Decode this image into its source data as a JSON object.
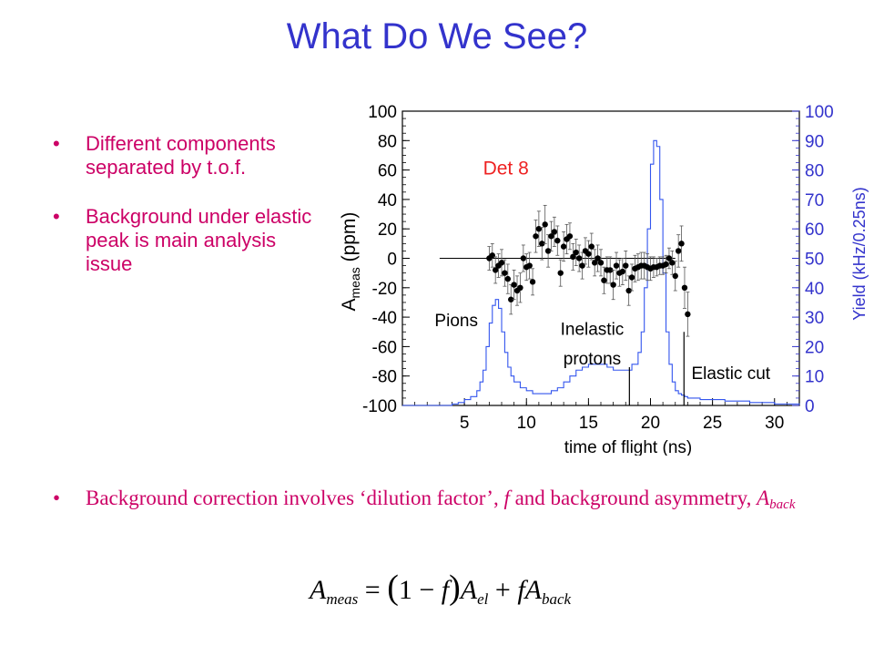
{
  "slide": {
    "title": "What Do We See?",
    "bullets": [
      "Different components separated by t.o.f.",
      "Background under elastic peak is main analysis issue"
    ],
    "bottom_bullet": {
      "text_before": "Background correction involves ‘dilution factor’, ",
      "f": "f",
      "text_middle": " and background asymmetry, ",
      "A": "A",
      "sub": "back"
    },
    "formula": {
      "lhs": "A",
      "lhs_sub": "meas",
      "eq": "=",
      "paren_open": "(",
      "one_minus": "1 − ",
      "f": "f",
      "paren_close": ")",
      "A_el": "A",
      "A_el_sub": "el",
      "plus": " + ",
      "f2": "f",
      "A_back": "A",
      "A_back_sub": "back"
    }
  },
  "chart_data": {
    "type": "scatter",
    "annotation_det": "Det 8",
    "labels": {
      "pions": "Pions",
      "inelastic_1": "Inelastic",
      "inelastic_2": "protons",
      "elastic_cut": "Elastic cut"
    },
    "xlabel": "time of flight (ns)",
    "ylabel_left_main": "A",
    "ylabel_left_sub": "meas",
    "ylabel_left_unit": " (ppm)",
    "ylabel_right": "Yield (kHz/0.25ns)",
    "xlim": [
      0,
      32
    ],
    "ylim_left": [
      -100,
      100
    ],
    "ylim_right": [
      0,
      100
    ],
    "xticks": [
      5,
      10,
      15,
      20,
      25,
      30
    ],
    "yticks_left": [
      100,
      80,
      60,
      40,
      20,
      0,
      -20,
      -40,
      -60,
      -80,
      -100
    ],
    "yticks_right": [
      100,
      90,
      80,
      70,
      60,
      50,
      40,
      30,
      20,
      10,
      0
    ],
    "colors": {
      "yield": "#3355ee",
      "right_axis": "#3333cc",
      "det_label": "#ee2222",
      "points": "#000000"
    },
    "series": [
      {
        "name": "Ameas",
        "axis": "left",
        "points": [
          [
            7.0,
            0,
            8
          ],
          [
            7.25,
            2,
            8
          ],
          [
            7.5,
            -8,
            9
          ],
          [
            7.75,
            -5,
            8
          ],
          [
            8.0,
            -3,
            9
          ],
          [
            8.25,
            -10,
            9
          ],
          [
            8.5,
            -14,
            10
          ],
          [
            8.75,
            -28,
            10
          ],
          [
            9.0,
            -18,
            10
          ],
          [
            9.25,
            -22,
            10
          ],
          [
            9.5,
            -20,
            10
          ],
          [
            9.75,
            0,
            9
          ],
          [
            10.0,
            -6,
            9
          ],
          [
            10.25,
            -5,
            9
          ],
          [
            10.5,
            -16,
            9
          ],
          [
            10.75,
            15,
            11
          ],
          [
            11.0,
            20,
            12
          ],
          [
            11.25,
            10,
            11
          ],
          [
            11.5,
            23,
            13
          ],
          [
            11.75,
            5,
            11
          ],
          [
            12.0,
            15,
            10
          ],
          [
            12.25,
            18,
            10
          ],
          [
            12.5,
            12,
            10
          ],
          [
            12.75,
            -10,
            9
          ],
          [
            13.0,
            8,
            10
          ],
          [
            13.25,
            13,
            10
          ],
          [
            13.5,
            15,
            9
          ],
          [
            13.75,
            1,
            9
          ],
          [
            14.0,
            4,
            9
          ],
          [
            14.25,
            0,
            9
          ],
          [
            14.5,
            -5,
            9
          ],
          [
            14.75,
            5,
            9
          ],
          [
            15.0,
            3,
            9
          ],
          [
            15.25,
            8,
            9
          ],
          [
            15.5,
            -3,
            9
          ],
          [
            15.75,
            0,
            9
          ],
          [
            16.0,
            -3,
            9
          ],
          [
            16.25,
            -15,
            9
          ],
          [
            16.5,
            -8,
            9
          ],
          [
            16.75,
            -8,
            9
          ],
          [
            17.0,
            -18,
            10
          ],
          [
            17.25,
            -5,
            9
          ],
          [
            17.5,
            -10,
            9
          ],
          [
            17.75,
            -9,
            9
          ],
          [
            18.0,
            -5,
            10
          ],
          [
            18.25,
            -22,
            10
          ],
          [
            18.5,
            -13,
            9
          ],
          [
            18.75,
            -7,
            9
          ],
          [
            19.0,
            -6,
            9
          ],
          [
            19.25,
            -5,
            9
          ],
          [
            19.5,
            -5,
            9
          ],
          [
            19.75,
            -6,
            9
          ],
          [
            20.0,
            -7,
            8
          ],
          [
            20.25,
            -6,
            7
          ],
          [
            20.5,
            -6,
            6
          ],
          [
            20.75,
            -5,
            6
          ],
          [
            21.0,
            -5,
            6
          ],
          [
            21.25,
            -4,
            6
          ],
          [
            21.5,
            0,
            7
          ],
          [
            21.75,
            -3,
            8
          ],
          [
            22.0,
            -12,
            10
          ],
          [
            22.25,
            5,
            11
          ],
          [
            22.5,
            10,
            12
          ],
          [
            22.75,
            -20,
            14
          ],
          [
            23.0,
            -38,
            15
          ]
        ]
      },
      {
        "name": "Yield",
        "axis": "right",
        "x": [
          0,
          3,
          4,
          4.5,
          5,
          5.5,
          6,
          6.25,
          6.5,
          6.75,
          7,
          7.25,
          7.5,
          7.75,
          8,
          8.25,
          8.5,
          8.75,
          9,
          9.5,
          10,
          10.5,
          11,
          11.5,
          12,
          12.5,
          13,
          13.5,
          14,
          14.5,
          15,
          15.5,
          16,
          16.5,
          17,
          17.5,
          18,
          18.5,
          19,
          19.25,
          19.5,
          19.75,
          20,
          20.25,
          20.5,
          20.75,
          21,
          21.25,
          21.5,
          21.75,
          22,
          22.25,
          22.5,
          22.75,
          23,
          24,
          26,
          28,
          30,
          32
        ],
        "y": [
          0,
          0,
          0.5,
          1,
          2,
          3,
          5,
          8,
          12,
          20,
          28,
          34,
          36,
          33,
          25,
          18,
          13,
          10,
          8,
          6,
          5,
          4,
          4,
          4,
          5,
          6,
          8,
          10,
          12,
          13,
          14,
          14,
          14,
          13,
          12,
          12,
          12,
          14,
          18,
          25,
          40,
          60,
          82,
          90,
          88,
          70,
          45,
          25,
          14,
          8,
          5,
          4,
          3.5,
          3,
          2.5,
          2,
          1.5,
          1,
          0.5,
          0.3
        ]
      }
    ],
    "markers": [
      {
        "x": 18.3,
        "y_right": 13
      },
      {
        "x": 22.7,
        "y_right": 25
      }
    ],
    "zero_line": true
  }
}
